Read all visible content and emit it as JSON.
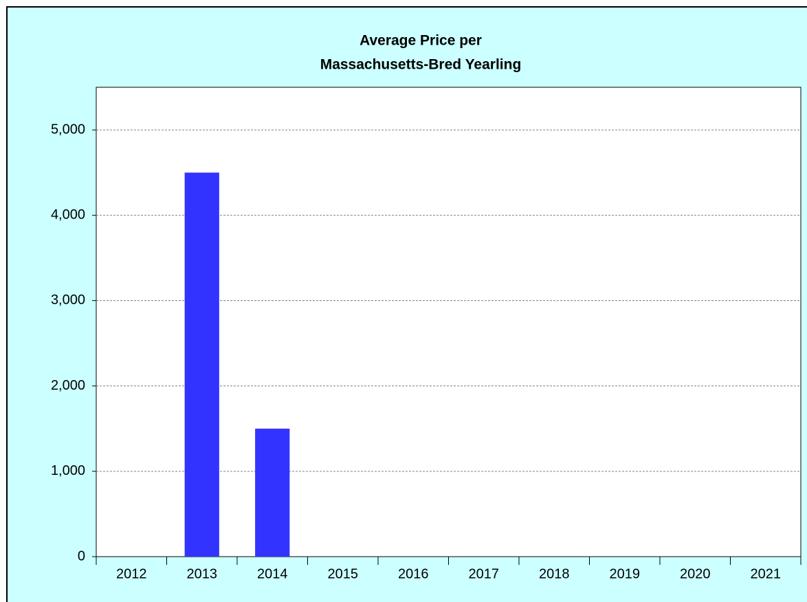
{
  "chart_data": {
    "type": "bar",
    "title": [
      "Average Price per",
      "Massachusetts-Bred Yearling"
    ],
    "categories": [
      "2012",
      "2013",
      "2014",
      "2015",
      "2016",
      "2017",
      "2018",
      "2019",
      "2020",
      "2021"
    ],
    "values": [
      null,
      4500,
      1500,
      null,
      null,
      null,
      null,
      null,
      null,
      null
    ],
    "color": "#3333ff",
    "ylim": [
      0,
      5500
    ],
    "yticks": [
      0,
      {
        "value": 1000,
        "label": "1,000"
      },
      {
        "value": 2000,
        "label": "2,000"
      },
      {
        "value": 3000,
        "label": "3,000"
      },
      {
        "value": 4000,
        "label": "4,000"
      },
      {
        "value": 5000,
        "label": "5,000"
      }
    ],
    "grid": true
  }
}
